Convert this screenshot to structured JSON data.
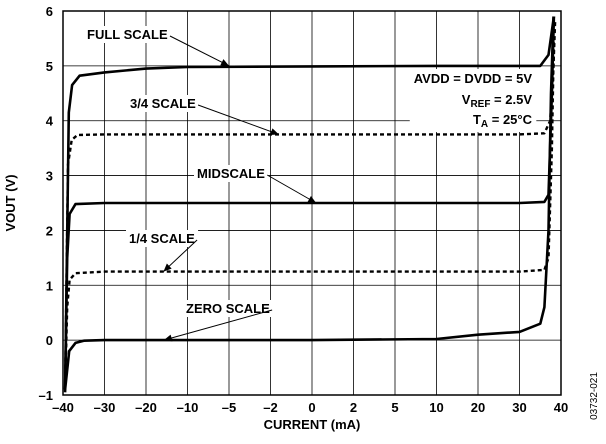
{
  "chart_data": {
    "type": "line",
    "xlabel": "CURRENT (mA)",
    "ylabel": "VOUT (V)",
    "xlim": [
      -40,
      40
    ],
    "ylim": [
      -1,
      6
    ],
    "grid": true,
    "x_tick_labels": [
      "–40",
      "–30",
      "–20",
      "–10",
      "–5",
      "–2",
      "0",
      "2",
      "5",
      "10",
      "20",
      "30",
      "40"
    ],
    "y_ticks": [
      -1,
      0,
      1,
      2,
      3,
      4,
      5,
      6
    ],
    "y_tick_labels": [
      "–1",
      "0",
      "1",
      "2",
      "3",
      "4",
      "5",
      "6"
    ],
    "conditions": {
      "line1": "AVDD = DVDD = 5V",
      "line2_main": "V",
      "line2_sub": "REF",
      "line2_rest": " = 2.5V",
      "line3_main": "T",
      "line3_sub": "A",
      "line3_rest": " = 25°C"
    },
    "figure_id": "03732-021",
    "series": [
      {
        "name": "FULL SCALE",
        "style": "solid",
        "points": [
          [
            -39.5,
            -0.95
          ],
          [
            -38.6,
            4.15
          ],
          [
            -37.8,
            4.65
          ],
          [
            -36,
            4.82
          ],
          [
            -30,
            4.88
          ],
          [
            -20,
            4.95
          ],
          [
            -10,
            4.98
          ],
          [
            0,
            4.99
          ],
          [
            10,
            5.0
          ],
          [
            20,
            5.0
          ],
          [
            30,
            5.0
          ],
          [
            35,
            5.0
          ],
          [
            37,
            5.2
          ],
          [
            38.3,
            5.9
          ]
        ]
      },
      {
        "name": "3/4 SCALE",
        "style": "dashed",
        "points": [
          [
            -39.5,
            -0.9
          ],
          [
            -38.8,
            3.2
          ],
          [
            -37.9,
            3.65
          ],
          [
            -36.5,
            3.74
          ],
          [
            -30,
            3.75
          ],
          [
            -20,
            3.75
          ],
          [
            0,
            3.75
          ],
          [
            20,
            3.75
          ],
          [
            30,
            3.75
          ],
          [
            36,
            3.77
          ],
          [
            37.4,
            4.0
          ],
          [
            38.2,
            5.0
          ],
          [
            38.6,
            5.85
          ]
        ]
      },
      {
        "name": "MIDSCALE",
        "style": "solid",
        "points": [
          [
            -39.5,
            -0.9
          ],
          [
            -39,
            1.5
          ],
          [
            -38.4,
            2.3
          ],
          [
            -37,
            2.48
          ],
          [
            -30,
            2.5
          ],
          [
            -20,
            2.5
          ],
          [
            0,
            2.5
          ],
          [
            20,
            2.5
          ],
          [
            30,
            2.5
          ],
          [
            36,
            2.52
          ],
          [
            37,
            2.65
          ],
          [
            37.8,
            4.5
          ],
          [
            38.3,
            5.9
          ]
        ]
      },
      {
        "name": "1/4 SCALE",
        "style": "dashed",
        "points": [
          [
            -39.5,
            -0.9
          ],
          [
            -39,
            0.6
          ],
          [
            -38.4,
            1.1
          ],
          [
            -37,
            1.22
          ],
          [
            -30,
            1.25
          ],
          [
            -20,
            1.25
          ],
          [
            0,
            1.25
          ],
          [
            20,
            1.25
          ],
          [
            30,
            1.25
          ],
          [
            36,
            1.28
          ],
          [
            37,
            1.5
          ],
          [
            37.8,
            3.5
          ],
          [
            38.3,
            5.5
          ]
        ]
      },
      {
        "name": "ZERO SCALE",
        "style": "solid",
        "points": [
          [
            -39.5,
            -0.9
          ],
          [
            -38.5,
            -0.2
          ],
          [
            -37,
            -0.05
          ],
          [
            -35,
            -0.01
          ],
          [
            -30,
            0.0
          ],
          [
            -20,
            0.0
          ],
          [
            -10,
            0.0
          ],
          [
            0,
            0.0
          ],
          [
            10,
            0.02
          ],
          [
            20,
            0.1
          ],
          [
            30,
            0.15
          ],
          [
            35,
            0.3
          ],
          [
            36,
            0.6
          ],
          [
            37,
            2.0
          ],
          [
            37.6,
            4.5
          ],
          [
            38.2,
            5.9
          ]
        ]
      }
    ],
    "annotations": [
      {
        "text": "FULL SCALE",
        "series": "FULL SCALE",
        "arrow_to": [
          -5.0,
          5.0
        ]
      },
      {
        "text": "3/4 SCALE",
        "series": "3/4 SCALE",
        "arrow_to": [
          -1.6,
          3.75
        ]
      },
      {
        "text": "MIDSCALE",
        "series": "MIDSCALE",
        "arrow_to": [
          0.2,
          2.5
        ]
      },
      {
        "text": "1/4 SCALE",
        "series": "1/4 SCALE",
        "arrow_to": [
          -15.8,
          1.25
        ]
      },
      {
        "text": "ZERO SCALE",
        "series": "ZERO SCALE",
        "arrow_to": [
          -15.7,
          0.0
        ]
      }
    ]
  }
}
